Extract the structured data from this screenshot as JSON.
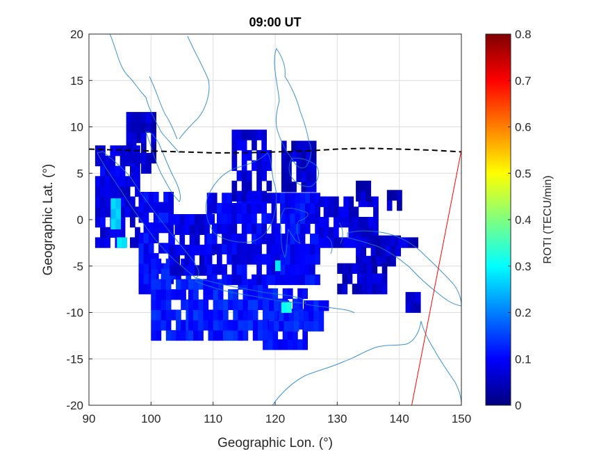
{
  "chart_data": {
    "type": "heatmap",
    "title": "09:00 UT",
    "xlabel": "Geographic Lon. (°)",
    "ylabel": "Geographic Lat. (°)",
    "xlim": [
      90,
      150
    ],
    "ylim": [
      -20,
      20
    ],
    "xticks": [
      "90",
      "100",
      "110",
      "120",
      "130",
      "140",
      "150"
    ],
    "yticks": [
      "20",
      "15",
      "10",
      "5",
      "0",
      "-5",
      "-10",
      "-15",
      "-20"
    ],
    "grid": true,
    "colorbar": {
      "label": "ROTI (TECU/min)",
      "range": [
        0,
        0.8
      ],
      "ticks": [
        "0.8",
        "0.7",
        "0.6",
        "0.5",
        "0.4",
        "0.3",
        "0.2",
        "0.1",
        "0"
      ],
      "colormap": "jet"
    },
    "magnetic_equator": {
      "style": "dashed",
      "color": "#000000",
      "points": [
        [
          90,
          7.6
        ],
        [
          95,
          7.5
        ],
        [
          100,
          7.4
        ],
        [
          105,
          7.3
        ],
        [
          110,
          7.2
        ],
        [
          115,
          7.2
        ],
        [
          120,
          7.3
        ],
        [
          125,
          7.4
        ],
        [
          130,
          7.6
        ],
        [
          135,
          7.7
        ],
        [
          140,
          7.6
        ],
        [
          145,
          7.5
        ],
        [
          150,
          7.3
        ]
      ]
    },
    "red_line": {
      "color": "#ff0000",
      "points": [
        [
          142,
          -20
        ],
        [
          150,
          7.5
        ]
      ]
    },
    "roti_regions": [
      {
        "lon": [
          91,
          98
        ],
        "lat": [
          -3,
          7.5
        ],
        "roti": 0.08
      },
      {
        "lon": [
          93.5,
          95
        ],
        "lat": [
          -1,
          2
        ],
        "roti": 0.25
      },
      {
        "lon": [
          94.5,
          96
        ],
        "lat": [
          -3,
          -2
        ],
        "roti": 0.28
      },
      {
        "lon": [
          96,
          100
        ],
        "lat": [
          5,
          10.5
        ],
        "roti": 0.06
      },
      {
        "lon": [
          98,
          103
        ],
        "lat": [
          -8,
          2
        ],
        "roti": 0.1
      },
      {
        "lon": [
          100,
          106
        ],
        "lat": [
          -13,
          -5
        ],
        "roti": 0.12
      },
      {
        "lon": [
          106,
          118
        ],
        "lat": [
          -13,
          -7
        ],
        "roti": 0.12
      },
      {
        "lon": [
          118,
          125
        ],
        "lat": [
          -14,
          -8
        ],
        "roti": 0.11
      },
      {
        "lon": [
          103,
          110
        ],
        "lat": [
          -6,
          0
        ],
        "roti": 0.08
      },
      {
        "lon": [
          109,
          120
        ],
        "lat": [
          -7,
          2
        ],
        "roti": 0.09
      },
      {
        "lon": [
          113,
          119
        ],
        "lat": [
          2,
          9
        ],
        "roti": 0.07
      },
      {
        "lon": [
          120,
          127
        ],
        "lat": [
          -7,
          2
        ],
        "roti": 0.1
      },
      {
        "lon": [
          121,
          126
        ],
        "lat": [
          3,
          8
        ],
        "roti": 0.06
      },
      {
        "lon": [
          119,
          128
        ],
        "lat": [
          -12,
          -9
        ],
        "roti": 0.12
      },
      {
        "lon": [
          121,
          122
        ],
        "lat": [
          -10,
          -9
        ],
        "roti": 0.3
      },
      {
        "lon": [
          120,
          121.5
        ],
        "lat": [
          -5.5,
          -4.5
        ],
        "roti": 0.28
      },
      {
        "lon": [
          127,
          136
        ],
        "lat": [
          -3,
          2
        ],
        "roti": 0.07
      },
      {
        "lon": [
          133,
          140
        ],
        "lat": [
          -5,
          -2
        ],
        "roti": 0.06
      },
      {
        "lon": [
          130,
          138
        ],
        "lat": [
          -8,
          -5
        ],
        "roti": 0.06
      },
      {
        "lon": [
          133,
          135
        ],
        "lat": [
          2,
          3.5
        ],
        "roti": 0.05
      },
      {
        "lon": [
          138,
          140
        ],
        "lat": [
          1,
          2.5
        ],
        "roti": 0.05
      },
      {
        "lon": [
          139,
          143
        ],
        "lat": [
          -3,
          -2
        ],
        "roti": 0.06
      },
      {
        "lon": [
          141,
          143
        ],
        "lat": [
          -10,
          -8.5
        ],
        "roti": 0.07
      }
    ]
  }
}
